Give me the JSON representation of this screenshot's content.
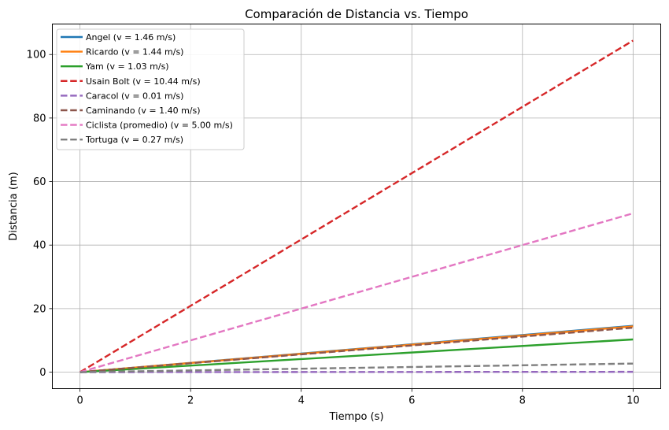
{
  "chart_data": {
    "type": "line",
    "title": "Comparación de Distancia vs. Tiempo",
    "xlabel": "Tiempo (s)",
    "ylabel": "Distancia (m)",
    "xlim": [
      -0.5,
      10.5
    ],
    "ylim": [
      -5.2,
      109.6
    ],
    "xticks": [
      0,
      2,
      4,
      6,
      8,
      10
    ],
    "yticks": [
      0,
      20,
      40,
      60,
      80,
      100
    ],
    "grid": true,
    "legend_position": "upper-left",
    "x": [
      0,
      10
    ],
    "series": [
      {
        "name": "Angel (v = 1.46 m/s)",
        "values": [
          0,
          14.6
        ],
        "color": "#1f77b4",
        "style": "solid"
      },
      {
        "name": "Ricardo (v = 1.44 m/s)",
        "values": [
          0,
          14.4
        ],
        "color": "#ff7f0e",
        "style": "solid"
      },
      {
        "name": "Yam (v = 1.03 m/s)",
        "values": [
          0,
          10.3
        ],
        "color": "#2ca02c",
        "style": "solid"
      },
      {
        "name": "Usain Bolt (v = 10.44 m/s)",
        "values": [
          0,
          104.4
        ],
        "color": "#d62728",
        "style": "dashed"
      },
      {
        "name": "Caracol (v = 0.01 m/s)",
        "values": [
          0,
          0.1
        ],
        "color": "#9467bd",
        "style": "dashed"
      },
      {
        "name": "Caminando (v = 1.40 m/s)",
        "values": [
          0,
          14.0
        ],
        "color": "#8c564b",
        "style": "dashed"
      },
      {
        "name": "Ciclista (promedio) (v = 5.00 m/s)",
        "values": [
          0,
          50.0
        ],
        "color": "#e377c2",
        "style": "dashed"
      },
      {
        "name": "Tortuga (v = 0.27 m/s)",
        "values": [
          0,
          2.7
        ],
        "color": "#7f7f7f",
        "style": "dashed"
      }
    ]
  }
}
